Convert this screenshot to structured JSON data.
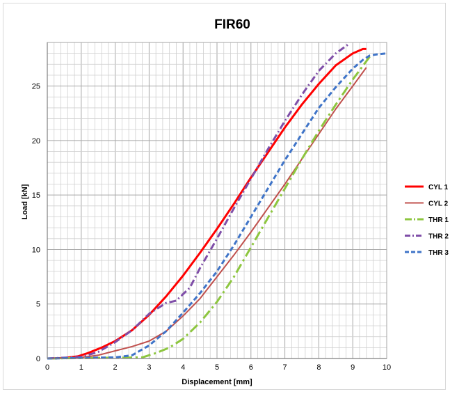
{
  "chart_data": {
    "type": "line",
    "title": "FIR60",
    "xlabel": "Displacement [mm]",
    "ylabel": "Load [kN]",
    "xlim": [
      0,
      10
    ],
    "ylim": [
      0,
      29
    ],
    "xticks": [
      0,
      1,
      2,
      3,
      4,
      5,
      6,
      7,
      8,
      9,
      10
    ],
    "yticks": [
      0,
      5,
      10,
      15,
      20,
      25
    ],
    "grid": true,
    "minor_grid": {
      "x_step": 0.2,
      "y_step": 1
    },
    "legend_position": "right",
    "series": [
      {
        "name": "CYL 1",
        "color": "#ff0000",
        "dash": "solid",
        "x": [
          0,
          0.5,
          0.9,
          1.2,
          1.6,
          2.0,
          2.5,
          3.0,
          3.5,
          4.0,
          4.5,
          5.0,
          5.5,
          6.0,
          6.5,
          7.0,
          7.5,
          8.0,
          8.5,
          9.0,
          9.3,
          9.4
        ],
        "y": [
          0,
          0.05,
          0.2,
          0.5,
          1.0,
          1.6,
          2.6,
          4.0,
          5.7,
          7.6,
          9.7,
          11.9,
          14.2,
          16.6,
          18.9,
          21.2,
          23.3,
          25.2,
          26.9,
          28.0,
          28.4,
          28.4
        ]
      },
      {
        "name": "CYL 2",
        "color": "#c0504d",
        "dash": "solid",
        "x": [
          0,
          1.0,
          1.5,
          2.0,
          2.5,
          3.0,
          3.5,
          4.0,
          4.5,
          5.0,
          5.5,
          6.0,
          6.5,
          7.0,
          7.5,
          8.0,
          8.5,
          9.0,
          9.4
        ],
        "y": [
          0,
          0.1,
          0.3,
          0.7,
          1.1,
          1.6,
          2.5,
          3.9,
          5.5,
          7.5,
          9.5,
          11.6,
          13.8,
          16.0,
          18.3,
          20.6,
          22.9,
          25.0,
          26.7
        ]
      },
      {
        "name": "THR 1",
        "color": "#8dc63f",
        "dash": "longdashdot",
        "x": [
          0,
          2.8,
          3.2,
          3.6,
          4.0,
          4.5,
          5.0,
          5.5,
          6.0,
          6.5,
          7.0,
          7.5,
          8.0,
          8.5,
          9.0,
          9.5
        ],
        "y": [
          0,
          0.1,
          0.5,
          1.0,
          1.8,
          3.3,
          5.2,
          7.5,
          10.2,
          12.9,
          15.6,
          18.3,
          20.9,
          23.3,
          25.6,
          27.7
        ]
      },
      {
        "name": "THR 2",
        "color": "#7f4ea8",
        "dash": "dashdot",
        "x": [
          0,
          1.0,
          1.5,
          2.0,
          2.5,
          3.0,
          3.5,
          3.8,
          4.2,
          4.5,
          5.0,
          5.5,
          6.0,
          6.5,
          7.0,
          7.5,
          8.0,
          8.5,
          8.9
        ],
        "y": [
          0,
          0.15,
          0.6,
          1.5,
          2.6,
          4.1,
          5.1,
          5.3,
          6.5,
          8.3,
          11.0,
          13.8,
          16.5,
          19.2,
          21.8,
          24.2,
          26.4,
          28.0,
          28.9
        ]
      },
      {
        "name": "THR 3",
        "color": "#3f74c8",
        "dash": "dashed",
        "x": [
          0,
          2.0,
          2.5,
          3.0,
          3.5,
          4.0,
          4.5,
          5.0,
          5.5,
          6.0,
          6.5,
          7.0,
          7.5,
          8.0,
          8.5,
          9.0,
          9.3,
          9.5,
          9.7,
          10.0
        ],
        "y": [
          0,
          0.1,
          0.3,
          1.2,
          2.5,
          4.2,
          6.0,
          8.0,
          10.4,
          13.0,
          15.6,
          18.2,
          20.6,
          23.0,
          24.9,
          26.6,
          27.4,
          27.8,
          27.9,
          28.0
        ]
      }
    ]
  }
}
